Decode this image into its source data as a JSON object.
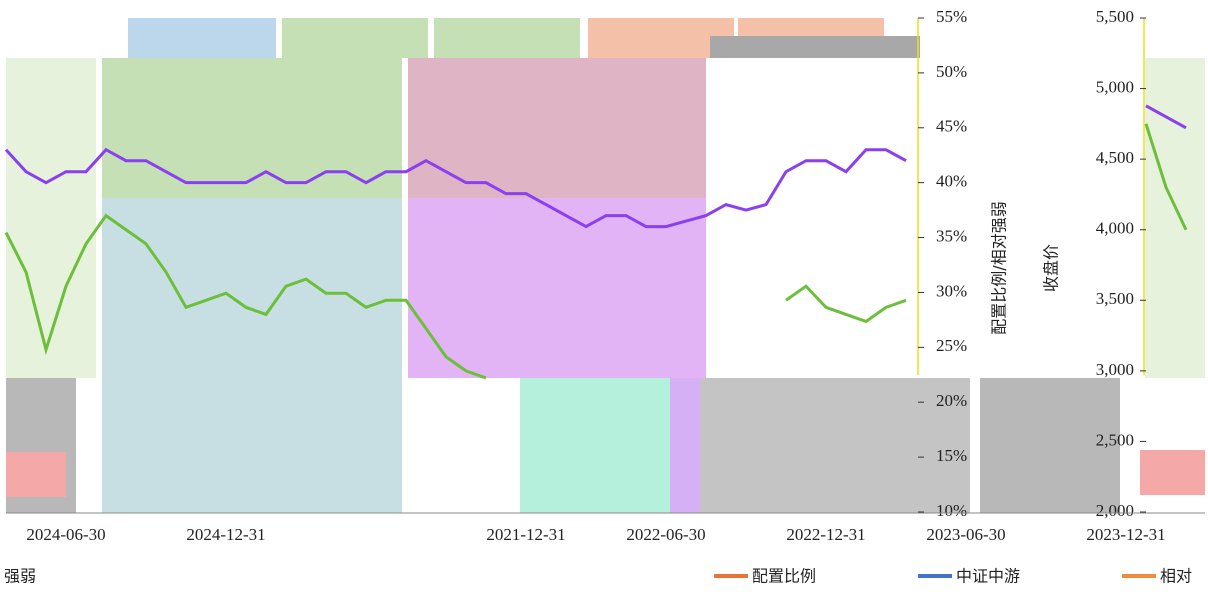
{
  "chart_data": {
    "type": "line",
    "y_title": "配置比例/相对强弱",
    "y2_title": "收盘价",
    "categories": [
      null,
      null,
      null,
      "2024-06-30",
      null,
      null,
      null,
      null,
      null,
      null,
      null,
      "2024-12-31",
      null,
      null,
      null,
      null,
      null,
      null,
      null,
      null,
      null,
      null,
      null,
      null,
      null,
      null,
      "2021-12-31",
      null,
      null,
      null,
      null,
      null,
      null,
      "2022-06-30",
      null,
      null,
      null,
      null,
      null,
      null,
      null,
      "2022-12-31",
      null,
      null,
      null,
      null,
      null,
      null,
      "2023-06-30",
      null,
      null,
      null,
      null,
      null,
      null,
      null,
      "2023-12-31",
      null,
      null,
      null
    ],
    "series": [
      {
        "color": "#8a3ff0",
        "values": [
          43,
          41,
          40,
          41,
          41,
          43,
          42,
          42,
          41,
          40,
          40,
          40,
          40,
          41,
          40,
          40,
          41,
          41,
          40,
          41,
          41,
          42,
          41,
          40,
          40,
          39,
          39,
          38,
          37,
          36,
          37,
          37,
          36,
          36,
          36.5,
          37,
          38,
          37.5,
          38,
          41,
          42,
          42,
          41,
          43,
          43,
          42,
          null,
          null,
          null,
          null,
          null,
          null,
          null,
          null,
          null,
          null,
          null,
          47,
          46,
          45
        ]
      },
      {
        "color": "#6cbf3a",
        "axis": "y2",
        "values": [
          3980,
          3700,
          3150,
          3600,
          3900,
          4100,
          4000,
          3900,
          3700,
          3450,
          3500,
          3550,
          3450,
          3400,
          3600,
          3650,
          3550,
          3550,
          3450,
          3500,
          3500,
          3300,
          3100,
          3000,
          2950,
          null,
          null,
          null,
          null,
          null,
          null,
          null,
          null,
          null,
          null,
          null,
          null,
          null,
          null,
          3500,
          3600,
          3450,
          3400,
          3350,
          3450,
          3500,
          null,
          null,
          null,
          null,
          null,
          null,
          null,
          null,
          null,
          null,
          null,
          4750,
          4300,
          4000
        ]
      }
    ],
    "ylim": [
      10,
      55
    ],
    "yticks": [
      {
        "value": 10,
        "label": "10%"
      },
      {
        "value": 15,
        "label": "15%"
      },
      {
        "value": 20,
        "label": "20%"
      },
      {
        "value": 25,
        "label": "25%"
      },
      {
        "value": 30,
        "label": "30%"
      },
      {
        "value": 35,
        "label": "35%"
      },
      {
        "value": 40,
        "label": "40%"
      },
      {
        "value": 45,
        "label": "45%"
      },
      {
        "value": 50,
        "label": "50%"
      },
      {
        "value": 55,
        "label": "55%"
      }
    ],
    "y2lim": [
      2000,
      5500
    ],
    "y2ticks": [
      {
        "value": 2000,
        "label": "2,000"
      },
      {
        "value": 2500,
        "label": "2,500"
      },
      {
        "value": 3000,
        "label": "3,000"
      },
      {
        "value": 3500,
        "label": "3,500"
      },
      {
        "value": 4000,
        "label": "4,000"
      },
      {
        "value": 4500,
        "label": "4,500"
      },
      {
        "value": 5000,
        "label": "5,000"
      },
      {
        "value": 5500,
        "label": "5,500"
      }
    ],
    "legend": [
      {
        "text": "强弱",
        "color": "#f08a3c"
      },
      {
        "text": "配置比例",
        "color": "#e8743b"
      },
      {
        "text": "中证中游",
        "color": "#4472c4"
      },
      {
        "text": "相对",
        "color": "#f08a3c"
      }
    ]
  }
}
